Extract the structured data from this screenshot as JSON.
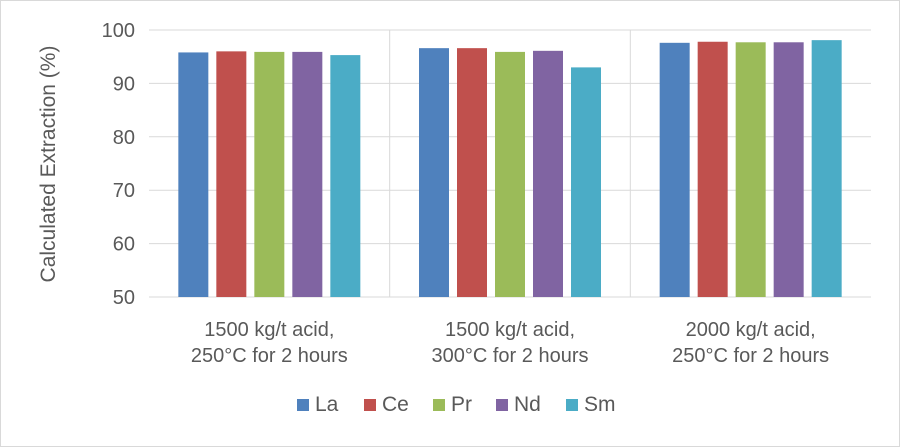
{
  "chart_data": {
    "type": "bar",
    "title": "",
    "xlabel": "",
    "ylabel": "Calculated Extraction (%)",
    "ylim": [
      50,
      100
    ],
    "yticks": [
      50,
      60,
      70,
      80,
      90,
      100
    ],
    "grid": true,
    "legend_position": "bottom",
    "categories": [
      [
        "1500 kg/t acid,",
        "250°C for 2 hours"
      ],
      [
        "1500 kg/t acid,",
        "300°C for 2 hours"
      ],
      [
        "2000 kg/t acid,",
        "250°C for 2 hours"
      ]
    ],
    "series": [
      {
        "name": "La",
        "color": "#4f81bd",
        "values": [
          95.8,
          96.6,
          97.6
        ]
      },
      {
        "name": "Ce",
        "color": "#c0504d",
        "values": [
          96.0,
          96.6,
          97.8
        ]
      },
      {
        "name": "Pr",
        "color": "#9bbb59",
        "values": [
          95.9,
          95.9,
          97.7
        ]
      },
      {
        "name": "Nd",
        "color": "#8064a2",
        "values": [
          95.9,
          96.1,
          97.7
        ]
      },
      {
        "name": "Sm",
        "color": "#4bacc6",
        "values": [
          95.3,
          93.0,
          98.1
        ]
      }
    ]
  }
}
